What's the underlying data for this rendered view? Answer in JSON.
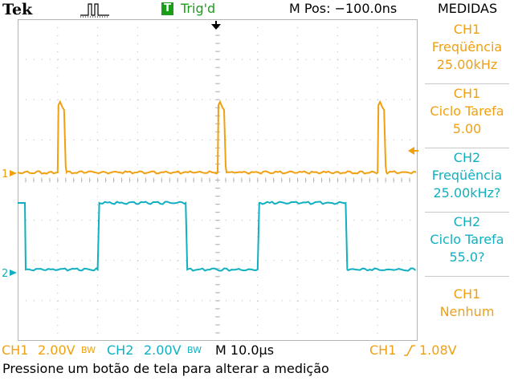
{
  "header": {
    "brand": "Tek",
    "acquire_icon": "pulse-waveform-icon",
    "trigger_badge": "T",
    "trigger_status": "Trig'd",
    "main_position": "M Pos: −100.0ns",
    "measure_title": "MEDIDAS"
  },
  "colors": {
    "ch1": "#f0a010",
    "ch2": "#10b0c0",
    "trigger": "#1a9e1a",
    "grid": "#b4b4b4",
    "background": "#ffffff"
  },
  "screen": {
    "ch1_marker": "1",
    "ch2_marker": "2",
    "trigger_position_icon": "trigger-position-arrow-icon",
    "trigger_level_icon": "trigger-level-arrow-icon",
    "ch1_waveform": {
      "frequency_khz": 25.0,
      "duty_cycle_percent": 5.0,
      "pulse_start_divs": [
        5.0,
        25.0,
        45.0
      ],
      "pulse_width_divs": 1.0
    },
    "ch2_waveform": {
      "frequency_khz": 25.0,
      "duty_cycle_percent": 55.0,
      "rise_divs": [
        10.0,
        30.0
      ],
      "fall_divs": [
        21.0,
        41.0
      ]
    }
  },
  "measurements": [
    {
      "line1": "CH1",
      "line2": "Freqüência",
      "line3": "25.00kHz",
      "channel": "ch1"
    },
    {
      "line1": "CH1",
      "line2": "Ciclo Tarefa",
      "line3": "5.00",
      "channel": "ch1"
    },
    {
      "line1": "CH2",
      "line2": "Freqüência",
      "line3": "25.00kHz?",
      "channel": "ch2"
    },
    {
      "line1": "CH2",
      "line2": "Ciclo Tarefa",
      "line3": "55.0?",
      "channel": "ch2"
    },
    {
      "line1": "CH1",
      "line2": "Nenhum",
      "line3": "",
      "channel": "ch1"
    }
  ],
  "status": {
    "ch1_label": "CH1",
    "ch1_scale": "2.00V",
    "ch1_bw": "BW",
    "ch2_label": "CH2",
    "ch2_scale": "2.00V",
    "ch2_bw": "BW",
    "timebase": "M 10.0µs",
    "trigger_source": "CH1",
    "trigger_slope_icon": "rising-edge-icon",
    "trigger_level": "1.08V"
  },
  "prompt": "Pressione um botão de tela para alterar a medição"
}
